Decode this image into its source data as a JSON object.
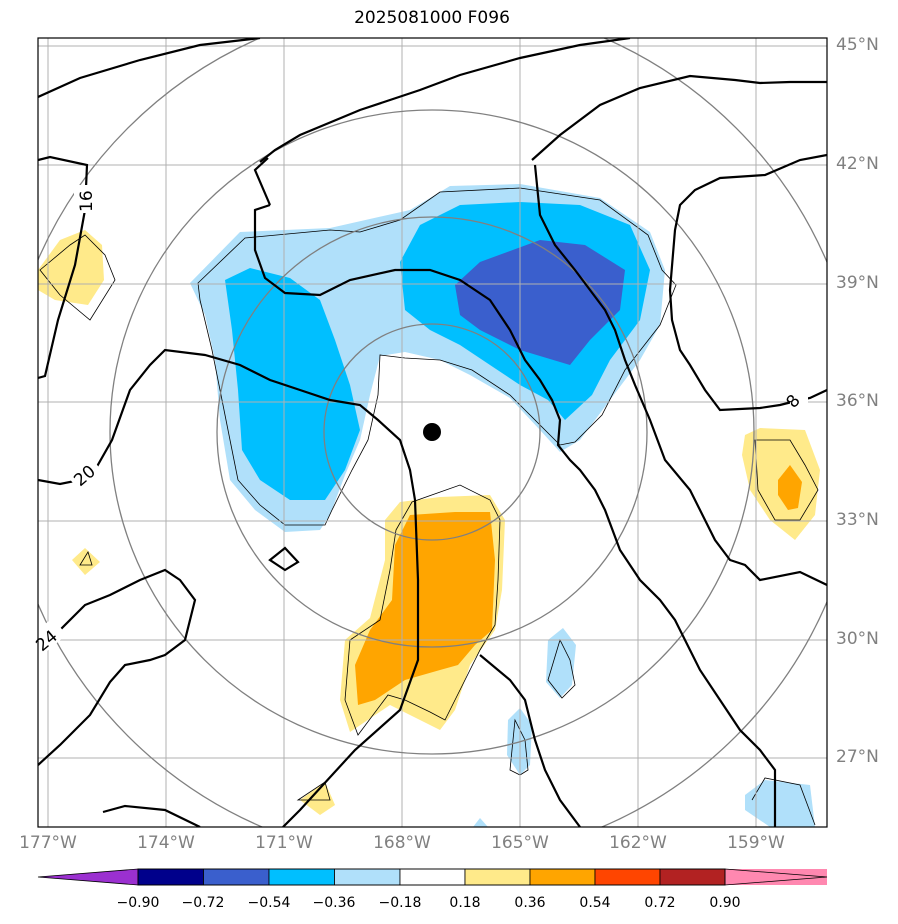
{
  "title": "2025081000 F096",
  "map": {
    "projection_view": "regional lat-lon with polar-type gridlines",
    "lat_labels": [
      "45°N",
      "42°N",
      "39°N",
      "36°N",
      "33°N",
      "30°N",
      "27°N"
    ],
    "lon_labels": [
      "177°W",
      "174°W",
      "171°W",
      "168°W",
      "165°W",
      "162°W",
      "159°W"
    ],
    "center_marker": "black dot",
    "contour_labels": [
      "16",
      "20",
      "24",
      "8"
    ],
    "colors": {
      "neg_090": "#9b30d0",
      "neg_072": "#00008b",
      "neg_054": "#3a5fcd",
      "neg_036": "#00bfff",
      "neg_018": "#b0e0fa",
      "zero": "#ffffff",
      "pos_018": "#ffea8a",
      "pos_036": "#ffa500",
      "pos_054": "#ff4500",
      "pos_072": "#b22222",
      "pos_090": "#ff88b0"
    }
  },
  "colorbar": {
    "ticks": [
      "−0.90",
      "−0.72",
      "−0.54",
      "−0.36",
      "−0.18",
      "0.18",
      "0.36",
      "0.54",
      "0.72",
      "0.90"
    ],
    "extend": "both"
  }
}
